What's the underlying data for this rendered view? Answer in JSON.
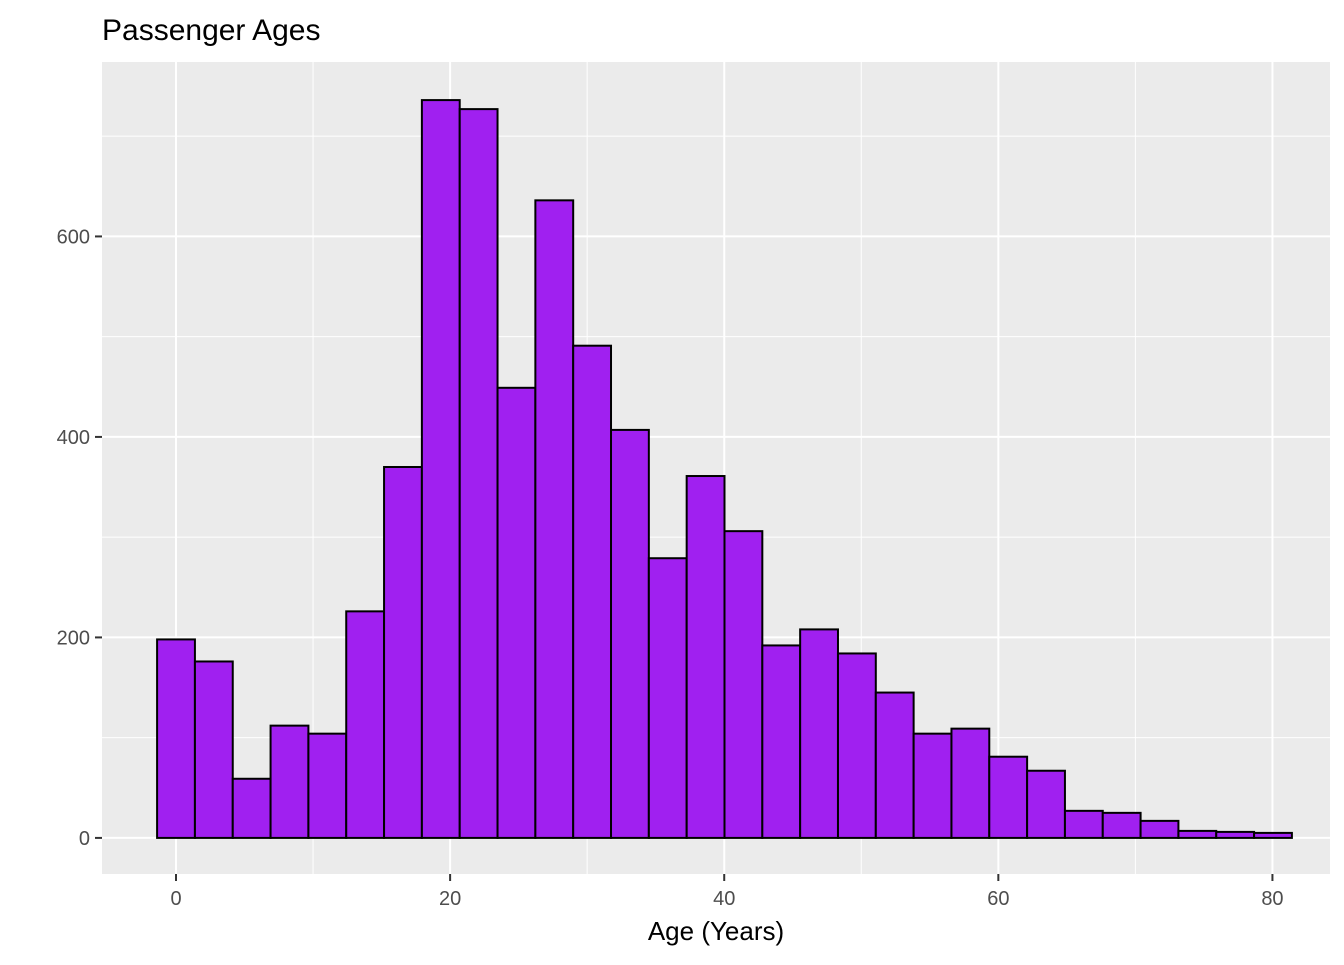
{
  "chart_data": {
    "type": "bar",
    "title": "Passenger Ages",
    "xlabel": "Age (Years)",
    "ylabel": "",
    "bin_width": 2.76,
    "bin_start": -1.38,
    "values": [
      198,
      176,
      59,
      112,
      104,
      226,
      370,
      736,
      727,
      449,
      636,
      491,
      407,
      279,
      361,
      306,
      192,
      208,
      184,
      145,
      104,
      109,
      81,
      67,
      27,
      25,
      17,
      7,
      6,
      5
    ],
    "xlim": [
      -5.4,
      84.2
    ],
    "ylim": [
      -36,
      774
    ],
    "x_ticks": [
      0,
      20,
      40,
      60,
      80
    ],
    "x_tick_labels": [
      "0",
      "20",
      "40",
      "60",
      "80"
    ],
    "y_ticks": [
      0,
      200,
      400,
      600
    ],
    "y_tick_labels": [
      "0",
      "200",
      "400",
      "600"
    ],
    "grid": true,
    "colors": {
      "fill": "#A020F0",
      "outline": "#000000",
      "panel": "#EBEBEB",
      "grid": "#FFFFFF",
      "tick_text": "#4D4D4D"
    }
  }
}
